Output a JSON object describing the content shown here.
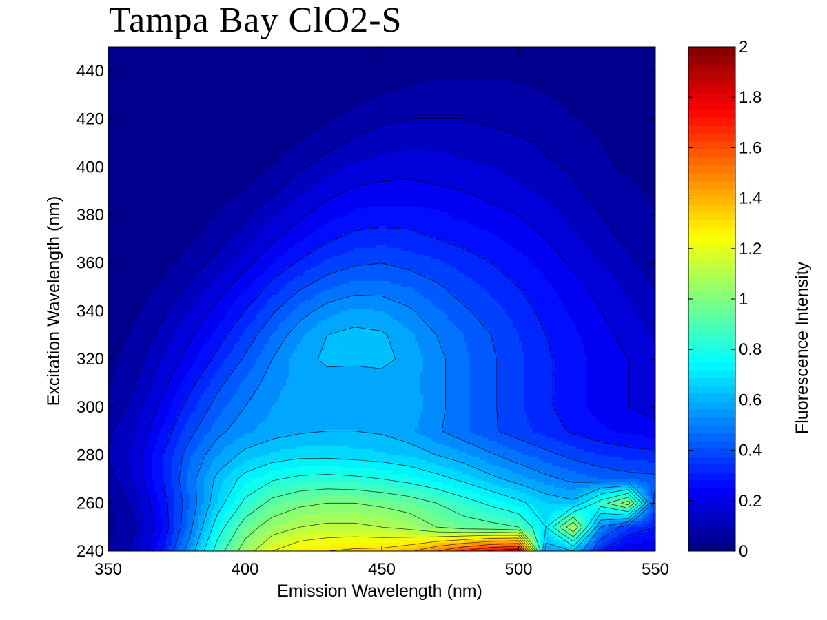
{
  "chart_data": {
    "type": "heatmap",
    "subtype": "filled-contour",
    "title": "Tampa Bay ClO2-S",
    "xlabel": "Emission Wavelength (nm)",
    "ylabel": "Excitation Wavelength (nm)",
    "colorbar_label": "Fluorescence Intensity",
    "colormap": "jet",
    "xlim": [
      350,
      550
    ],
    "ylim": [
      240,
      450
    ],
    "clim": [
      0,
      2
    ],
    "xticks": [
      "350",
      "400",
      "450",
      "500",
      "550"
    ],
    "yticks": [
      "240",
      "260",
      "280",
      "300",
      "320",
      "340",
      "360",
      "380",
      "400",
      "420",
      "440"
    ],
    "cticks": [
      "0",
      "0.2",
      "0.4",
      "0.6",
      "0.8",
      "1",
      "1.2",
      "1.4",
      "1.6",
      "1.8",
      "2"
    ],
    "x": [
      350,
      360,
      370,
      380,
      390,
      400,
      410,
      420,
      430,
      440,
      450,
      460,
      470,
      480,
      490,
      500,
      510,
      520,
      530,
      540,
      550
    ],
    "y": [
      240,
      250,
      260,
      270,
      280,
      290,
      300,
      310,
      320,
      330,
      340,
      350,
      360,
      370,
      380,
      390,
      400,
      410,
      420,
      430,
      440,
      450
    ],
    "z": [
      [
        0.05,
        0.12,
        0.3,
        0.55,
        0.85,
        1.05,
        1.2,
        1.27,
        1.3,
        1.32,
        1.33,
        1.38,
        1.5,
        1.62,
        1.72,
        1.78,
        0.55,
        0.6,
        0.3,
        0.2,
        0.2
      ],
      [
        0.03,
        0.1,
        0.25,
        0.48,
        0.75,
        0.95,
        1.05,
        1.1,
        1.12,
        1.12,
        1.1,
        1.07,
        1.0,
        0.95,
        0.93,
        0.9,
        0.7,
        1.1,
        0.5,
        0.35,
        0.3
      ],
      [
        0.04,
        0.12,
        0.27,
        0.45,
        0.66,
        0.82,
        0.93,
        0.98,
        1.0,
        1.0,
        0.98,
        0.95,
        0.9,
        0.84,
        0.78,
        0.72,
        0.65,
        0.62,
        0.85,
        1.05,
        0.35
      ],
      [
        0.08,
        0.16,
        0.3,
        0.47,
        0.62,
        0.73,
        0.79,
        0.82,
        0.83,
        0.82,
        0.8,
        0.77,
        0.73,
        0.68,
        0.62,
        0.57,
        0.52,
        0.48,
        0.45,
        0.43,
        0.42
      ],
      [
        0.1,
        0.17,
        0.3,
        0.44,
        0.55,
        0.62,
        0.66,
        0.68,
        0.68,
        0.67,
        0.66,
        0.64,
        0.6,
        0.56,
        0.51,
        0.46,
        0.42,
        0.38,
        0.35,
        0.33,
        0.32
      ],
      [
        0.09,
        0.15,
        0.26,
        0.38,
        0.48,
        0.54,
        0.57,
        0.59,
        0.6,
        0.6,
        0.59,
        0.56,
        0.51,
        0.46,
        0.41,
        0.37,
        0.33,
        0.29,
        0.26,
        0.24,
        0.22
      ],
      [
        0.06,
        0.12,
        0.22,
        0.33,
        0.43,
        0.5,
        0.55,
        0.58,
        0.57,
        0.55,
        0.59,
        0.58,
        0.52,
        0.46,
        0.41,
        0.36,
        0.31,
        0.27,
        0.23,
        0.2,
        0.18
      ],
      [
        0.04,
        0.1,
        0.18,
        0.28,
        0.38,
        0.46,
        0.53,
        0.57,
        0.58,
        0.55,
        0.57,
        0.57,
        0.52,
        0.46,
        0.41,
        0.36,
        0.31,
        0.27,
        0.23,
        0.2,
        0.18
      ],
      [
        0.03,
        0.08,
        0.15,
        0.23,
        0.32,
        0.41,
        0.5,
        0.58,
        0.61,
        0.62,
        0.62,
        0.58,
        0.52,
        0.46,
        0.41,
        0.36,
        0.31,
        0.27,
        0.23,
        0.2,
        0.16
      ],
      [
        0.02,
        0.06,
        0.12,
        0.19,
        0.27,
        0.36,
        0.45,
        0.54,
        0.6,
        0.62,
        0.61,
        0.56,
        0.5,
        0.45,
        0.4,
        0.35,
        0.3,
        0.26,
        0.22,
        0.18,
        0.14
      ],
      [
        0.01,
        0.04,
        0.09,
        0.15,
        0.22,
        0.3,
        0.39,
        0.47,
        0.53,
        0.56,
        0.55,
        0.51,
        0.46,
        0.41,
        0.37,
        0.33,
        0.28,
        0.24,
        0.2,
        0.16,
        0.12
      ],
      [
        0.0,
        0.02,
        0.06,
        0.11,
        0.17,
        0.24,
        0.32,
        0.39,
        0.44,
        0.47,
        0.47,
        0.45,
        0.41,
        0.37,
        0.34,
        0.3,
        0.26,
        0.22,
        0.18,
        0.14,
        0.1
      ],
      [
        0.0,
        0.01,
        0.03,
        0.07,
        0.12,
        0.18,
        0.25,
        0.31,
        0.36,
        0.39,
        0.4,
        0.38,
        0.36,
        0.33,
        0.3,
        0.27,
        0.23,
        0.19,
        0.15,
        0.11,
        0.08
      ],
      [
        0.0,
        0.0,
        0.01,
        0.04,
        0.08,
        0.13,
        0.19,
        0.24,
        0.29,
        0.32,
        0.33,
        0.32,
        0.3,
        0.28,
        0.26,
        0.23,
        0.2,
        0.16,
        0.12,
        0.09,
        0.06
      ],
      [
        0.0,
        0.0,
        0.0,
        0.02,
        0.05,
        0.09,
        0.14,
        0.19,
        0.23,
        0.26,
        0.27,
        0.27,
        0.26,
        0.24,
        0.22,
        0.2,
        0.17,
        0.13,
        0.1,
        0.07,
        0.05
      ],
      [
        0.0,
        0.0,
        0.0,
        0.0,
        0.02,
        0.05,
        0.09,
        0.14,
        0.18,
        0.21,
        0.22,
        0.22,
        0.21,
        0.2,
        0.18,
        0.16,
        0.14,
        0.11,
        0.08,
        0.06,
        0.04
      ],
      [
        0.0,
        0.0,
        0.0,
        0.0,
        0.0,
        0.02,
        0.05,
        0.09,
        0.13,
        0.16,
        0.17,
        0.18,
        0.17,
        0.16,
        0.15,
        0.13,
        0.11,
        0.09,
        0.06,
        0.04,
        0.03
      ],
      [
        0.0,
        0.0,
        0.0,
        0.0,
        0.0,
        0.0,
        0.02,
        0.05,
        0.08,
        0.11,
        0.13,
        0.14,
        0.14,
        0.13,
        0.12,
        0.11,
        0.09,
        0.07,
        0.05,
        0.03,
        0.02
      ],
      [
        0.0,
        0.0,
        0.0,
        0.0,
        0.0,
        0.0,
        0.0,
        0.02,
        0.04,
        0.07,
        0.09,
        0.1,
        0.1,
        0.1,
        0.09,
        0.08,
        0.07,
        0.05,
        0.04,
        0.02,
        0.01
      ],
      [
        0.0,
        0.0,
        0.0,
        0.0,
        0.0,
        0.0,
        0.0,
        0.0,
        0.01,
        0.03,
        0.05,
        0.06,
        0.07,
        0.07,
        0.07,
        0.06,
        0.05,
        0.04,
        0.03,
        0.02,
        0.01
      ],
      [
        0.0,
        0.0,
        0.0,
        0.0,
        0.0,
        0.0,
        0.0,
        0.0,
        0.0,
        0.01,
        0.02,
        0.03,
        0.04,
        0.04,
        0.04,
        0.04,
        0.03,
        0.02,
        0.02,
        0.01,
        0.0
      ],
      [
        0.0,
        0.0,
        0.0,
        0.0,
        0.0,
        0.0,
        0.0,
        0.0,
        0.0,
        0.0,
        0.0,
        0.01,
        0.02,
        0.02,
        0.02,
        0.02,
        0.02,
        0.01,
        0.01,
        0.0,
        0.0
      ]
    ]
  }
}
